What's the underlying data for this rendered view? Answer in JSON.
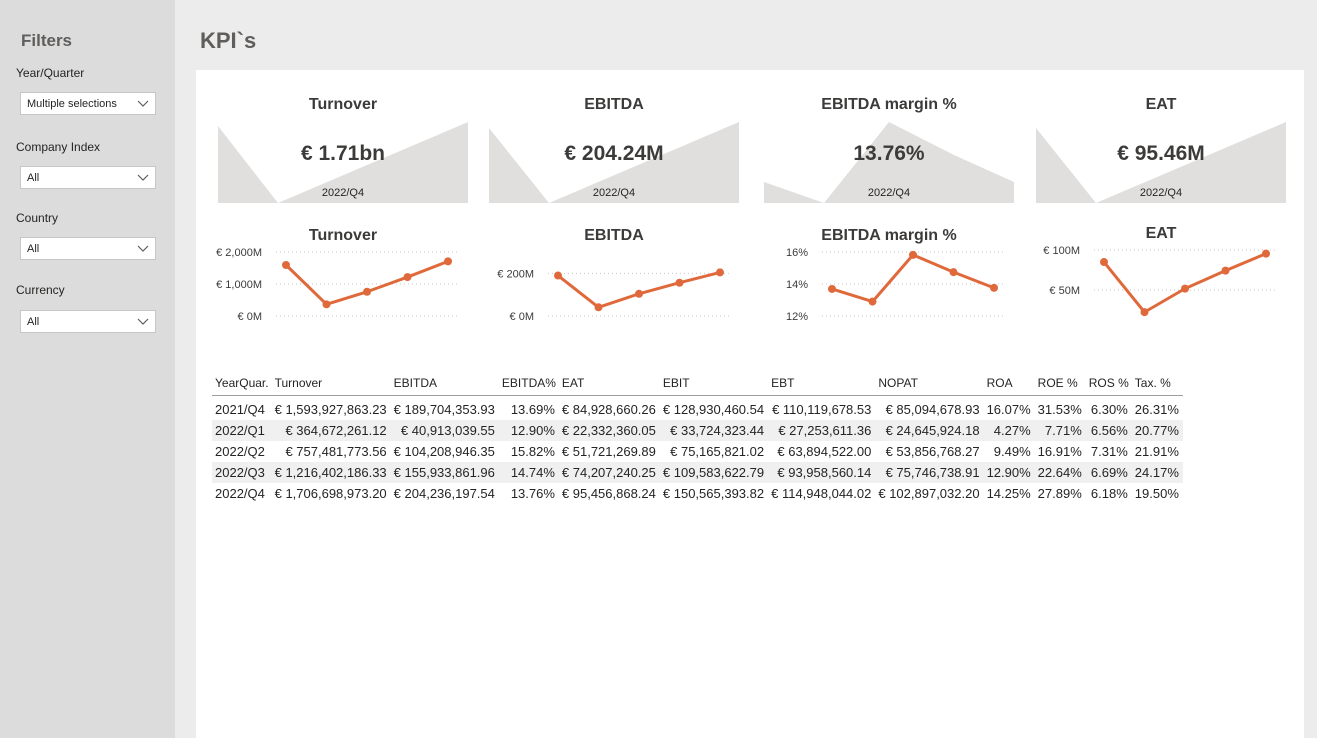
{
  "page": {
    "title": "KPI`s"
  },
  "filters": {
    "title": "Filters",
    "items": [
      {
        "label": "Year/Quarter",
        "value": "Multiple selections"
      },
      {
        "label": "Company Index",
        "value": "All"
      },
      {
        "label": "Country",
        "value": "All"
      },
      {
        "label": "Currency",
        "value": "All"
      }
    ]
  },
  "cards": [
    {
      "title": "Turnover",
      "value": "€ 1.71bn",
      "period": "2022/Q4"
    },
    {
      "title": "EBITDA",
      "value": "€ 204.24M",
      "period": "2022/Q4"
    },
    {
      "title": "EBITDA margin %",
      "value": "13.76%",
      "period": "2022/Q4"
    },
    {
      "title": "EAT",
      "value": "€ 95.46M",
      "period": "2022/Q4"
    }
  ],
  "colors": {
    "accent": "#e0693b",
    "sparkline_fill": "#e1dfdd",
    "sidebar": "#dcdcdc",
    "background": "#ececec"
  },
  "chart_data": [
    {
      "type": "line",
      "title": "Turnover",
      "categories": [
        "2021/Q4",
        "2022/Q1",
        "2022/Q2",
        "2022/Q3",
        "2022/Q4"
      ],
      "values": [
        1593.93,
        364.67,
        757.48,
        1216.4,
        1706.7
      ],
      "ylim": [
        0,
        2000
      ],
      "yticks": [
        0,
        1000,
        2000
      ],
      "yticklabels": [
        "€ 0M",
        "€ 1,000M",
        "€ 2,000M"
      ],
      "grid": true
    },
    {
      "type": "line",
      "title": "EBITDA",
      "categories": [
        "2021/Q4",
        "2022/Q1",
        "2022/Q2",
        "2022/Q3",
        "2022/Q4"
      ],
      "values": [
        189.7,
        40.91,
        104.21,
        155.93,
        204.24
      ],
      "ylim": [
        0,
        300
      ],
      "yticks": [
        0,
        200
      ],
      "yticklabels": [
        "€ 0M",
        "€ 200M"
      ],
      "grid": true
    },
    {
      "type": "line",
      "title": "EBITDA margin %",
      "categories": [
        "2021/Q4",
        "2022/Q1",
        "2022/Q2",
        "2022/Q3",
        "2022/Q4"
      ],
      "values": [
        13.69,
        12.9,
        15.82,
        14.74,
        13.76
      ],
      "ylim": [
        12,
        16
      ],
      "yticks": [
        12,
        14,
        16
      ],
      "yticklabels": [
        "12%",
        "14%",
        "16%"
      ],
      "grid": true
    },
    {
      "type": "line",
      "title": "EAT",
      "categories": [
        "2021/Q4",
        "2022/Q1",
        "2022/Q2",
        "2022/Q3",
        "2022/Q4"
      ],
      "values": [
        84.93,
        22.33,
        51.72,
        74.21,
        95.46
      ],
      "ylim": [
        20,
        100
      ],
      "yticks": [
        50,
        100
      ],
      "yticklabels": [
        "€ 50M",
        "€ 100M"
      ],
      "grid": true
    }
  ],
  "table": {
    "columns": [
      "YearQuar.",
      "Turnover",
      "EBITDA",
      "EBITDA%",
      "EAT",
      "EBIT",
      "EBT",
      "NOPAT",
      "ROA",
      "ROE %",
      "ROS %",
      "Tax. %"
    ],
    "rows": [
      [
        "2021/Q4",
        "€ 1,593,927,863.23",
        "€ 189,704,353.93",
        "13.69%",
        "€ 84,928,660.26",
        "€ 128,930,460.54",
        "€ 110,119,678.53",
        "€ 85,094,678.93",
        "16.07%",
        "31.53%",
        "6.30%",
        "26.31%"
      ],
      [
        "2022/Q1",
        "€ 364,672,261.12",
        "€ 40,913,039.55",
        "12.90%",
        "€ 22,332,360.05",
        "€ 33,724,323.44",
        "€ 27,253,611.36",
        "€ 24,645,924.18",
        "4.27%",
        "7.71%",
        "6.56%",
        "20.77%"
      ],
      [
        "2022/Q2",
        "€ 757,481,773.56",
        "€ 104,208,946.35",
        "15.82%",
        "€ 51,721,269.89",
        "€ 75,165,821.02",
        "€ 63,894,522.00",
        "€ 53,856,768.27",
        "9.49%",
        "16.91%",
        "7.31%",
        "21.91%"
      ],
      [
        "2022/Q3",
        "€ 1,216,402,186.33",
        "€ 155,933,861.96",
        "14.74%",
        "€ 74,207,240.25",
        "€ 109,583,622.79",
        "€ 93,958,560.14",
        "€ 75,746,738.91",
        "12.90%",
        "22.64%",
        "6.69%",
        "24.17%"
      ],
      [
        "2022/Q4",
        "€ 1,706,698,973.20",
        "€ 204,236,197.54",
        "13.76%",
        "€ 95,456,868.24",
        "€ 150,565,393.82",
        "€ 114,948,044.02",
        "€ 102,897,032.20",
        "14.25%",
        "27.89%",
        "6.18%",
        "19.50%"
      ]
    ]
  }
}
